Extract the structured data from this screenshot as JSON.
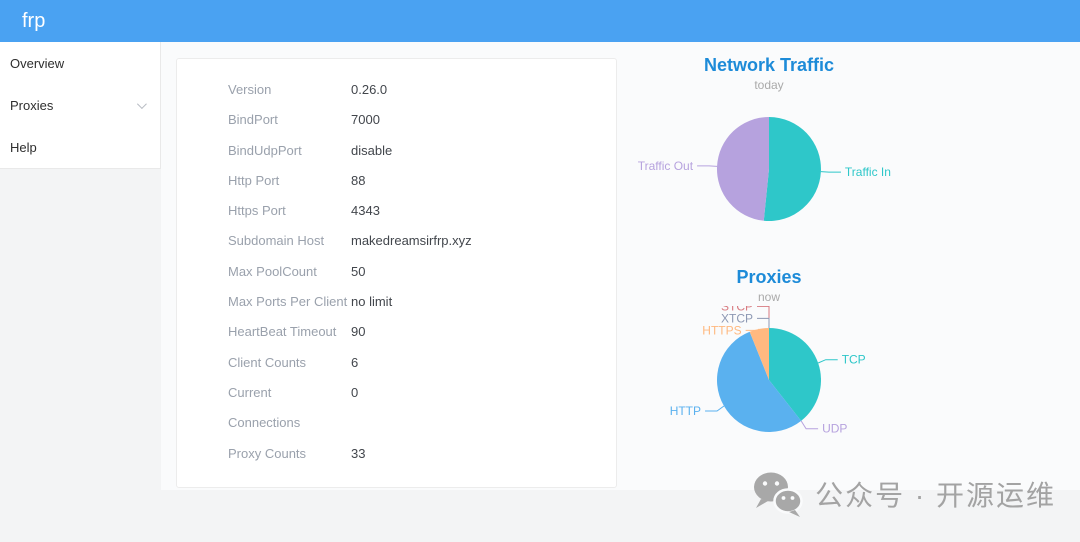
{
  "header": {
    "app_title": "frp"
  },
  "sidebar": {
    "items": [
      {
        "label": "Overview",
        "expandable": false
      },
      {
        "label": "Proxies",
        "expandable": true
      },
      {
        "label": "Help",
        "expandable": false
      }
    ]
  },
  "server_info": {
    "rows": [
      {
        "label": "Version",
        "value": "0.26.0"
      },
      {
        "label": "BindPort",
        "value": "7000"
      },
      {
        "label": "BindUdpPort",
        "value": "disable"
      },
      {
        "label": "Http Port",
        "value": "88"
      },
      {
        "label": "Https Port",
        "value": "4343"
      },
      {
        "label": "Subdomain Host",
        "value": "makedreamsirfrp.xyz"
      },
      {
        "label": "Max PoolCount",
        "value": "50"
      },
      {
        "label": "Max Ports Per Client",
        "value": "no limit"
      },
      {
        "label": "HeartBeat Timeout",
        "value": "90"
      },
      {
        "label": "Client Counts",
        "value": "6"
      },
      {
        "label": "Current\nConnections",
        "value": "0"
      },
      {
        "label": "Proxy Counts",
        "value": "33"
      }
    ]
  },
  "chart_data": [
    {
      "type": "pie",
      "title": "Network Traffic",
      "subtitle": "today",
      "legend_position": "none",
      "unit": "percent (estimated from slice angles)",
      "slices": [
        {
          "name": "Traffic In",
          "value": 51.6,
          "color": "#2ec7c9"
        },
        {
          "name": "Traffic Out",
          "value": 48.4,
          "color": "#b6a2de"
        }
      ]
    },
    {
      "type": "pie",
      "title": "Proxies",
      "subtitle": "now",
      "legend_position": "none",
      "unit": "proxy count (estimated, total 33)",
      "slices": [
        {
          "name": "TCP",
          "value": 13,
          "color": "#2ec7c9"
        },
        {
          "name": "UDP",
          "value": 0,
          "color": "#b6a2de"
        },
        {
          "name": "HTTP",
          "value": 18,
          "color": "#5ab1ef"
        },
        {
          "name": "HTTPS",
          "value": 2,
          "color": "#ffb980"
        },
        {
          "name": "STCP",
          "value": 0,
          "color": "#d87a80"
        },
        {
          "name": "XTCP",
          "value": 0,
          "color": "#8d98b3"
        }
      ]
    }
  ],
  "watermark": {
    "icon": "wechat-icon",
    "text": "公众号 · 开源运维"
  },
  "colors": {
    "header_bg": "#4aa2f2",
    "chart_title": "#1d8bd8",
    "page_bg": "#f3f4f5",
    "content_bg": "#fafbfc",
    "label_gray": "#9aa1ac",
    "value_dark": "#42464c"
  }
}
